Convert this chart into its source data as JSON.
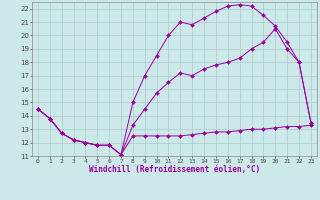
{
  "xlabel": "Windchill (Refroidissement éolien,°C)",
  "background_color": "#cde8e8",
  "grid_color": "#aacccc",
  "line_color": "#990099",
  "xlim": [
    -0.5,
    23.5
  ],
  "ylim": [
    11,
    22.5
  ],
  "yticks": [
    11,
    12,
    13,
    14,
    15,
    16,
    17,
    18,
    19,
    20,
    21,
    22
  ],
  "xticks": [
    0,
    1,
    2,
    3,
    4,
    5,
    6,
    7,
    8,
    9,
    10,
    11,
    12,
    13,
    14,
    15,
    16,
    17,
    18,
    19,
    20,
    21,
    22,
    23
  ],
  "line1_x": [
    0,
    1,
    2,
    3,
    4,
    5,
    6,
    7,
    8,
    9,
    10,
    11,
    12,
    13,
    14,
    15,
    16,
    17,
    18,
    19,
    20,
    21,
    22,
    23
  ],
  "line1_y": [
    14.5,
    13.8,
    12.7,
    12.2,
    12.0,
    11.8,
    11.8,
    11.1,
    12.5,
    12.5,
    12.5,
    12.5,
    12.5,
    12.6,
    12.7,
    12.8,
    12.8,
    12.9,
    13.0,
    13.0,
    13.1,
    13.2,
    13.2,
    13.3
  ],
  "line2_x": [
    0,
    1,
    2,
    3,
    4,
    5,
    6,
    7,
    8,
    9,
    10,
    11,
    12,
    13,
    14,
    15,
    16,
    17,
    18,
    19,
    20,
    21,
    22,
    23
  ],
  "line2_y": [
    14.5,
    13.8,
    12.7,
    12.2,
    12.0,
    11.8,
    11.8,
    11.1,
    13.3,
    14.5,
    15.7,
    16.5,
    17.2,
    17.0,
    17.5,
    17.8,
    18.0,
    18.3,
    19.0,
    19.5,
    20.5,
    19.0,
    18.0,
    13.5
  ],
  "line3_x": [
    0,
    1,
    2,
    3,
    4,
    5,
    6,
    7,
    8,
    9,
    10,
    11,
    12,
    13,
    14,
    15,
    16,
    17,
    18,
    19,
    20,
    21,
    22,
    23
  ],
  "line3_y": [
    14.5,
    13.8,
    12.7,
    12.2,
    12.0,
    11.8,
    11.8,
    11.1,
    15.0,
    17.0,
    18.5,
    20.0,
    21.0,
    20.8,
    21.3,
    21.8,
    22.2,
    22.3,
    22.2,
    21.5,
    20.7,
    19.5,
    18.0,
    13.5
  ]
}
